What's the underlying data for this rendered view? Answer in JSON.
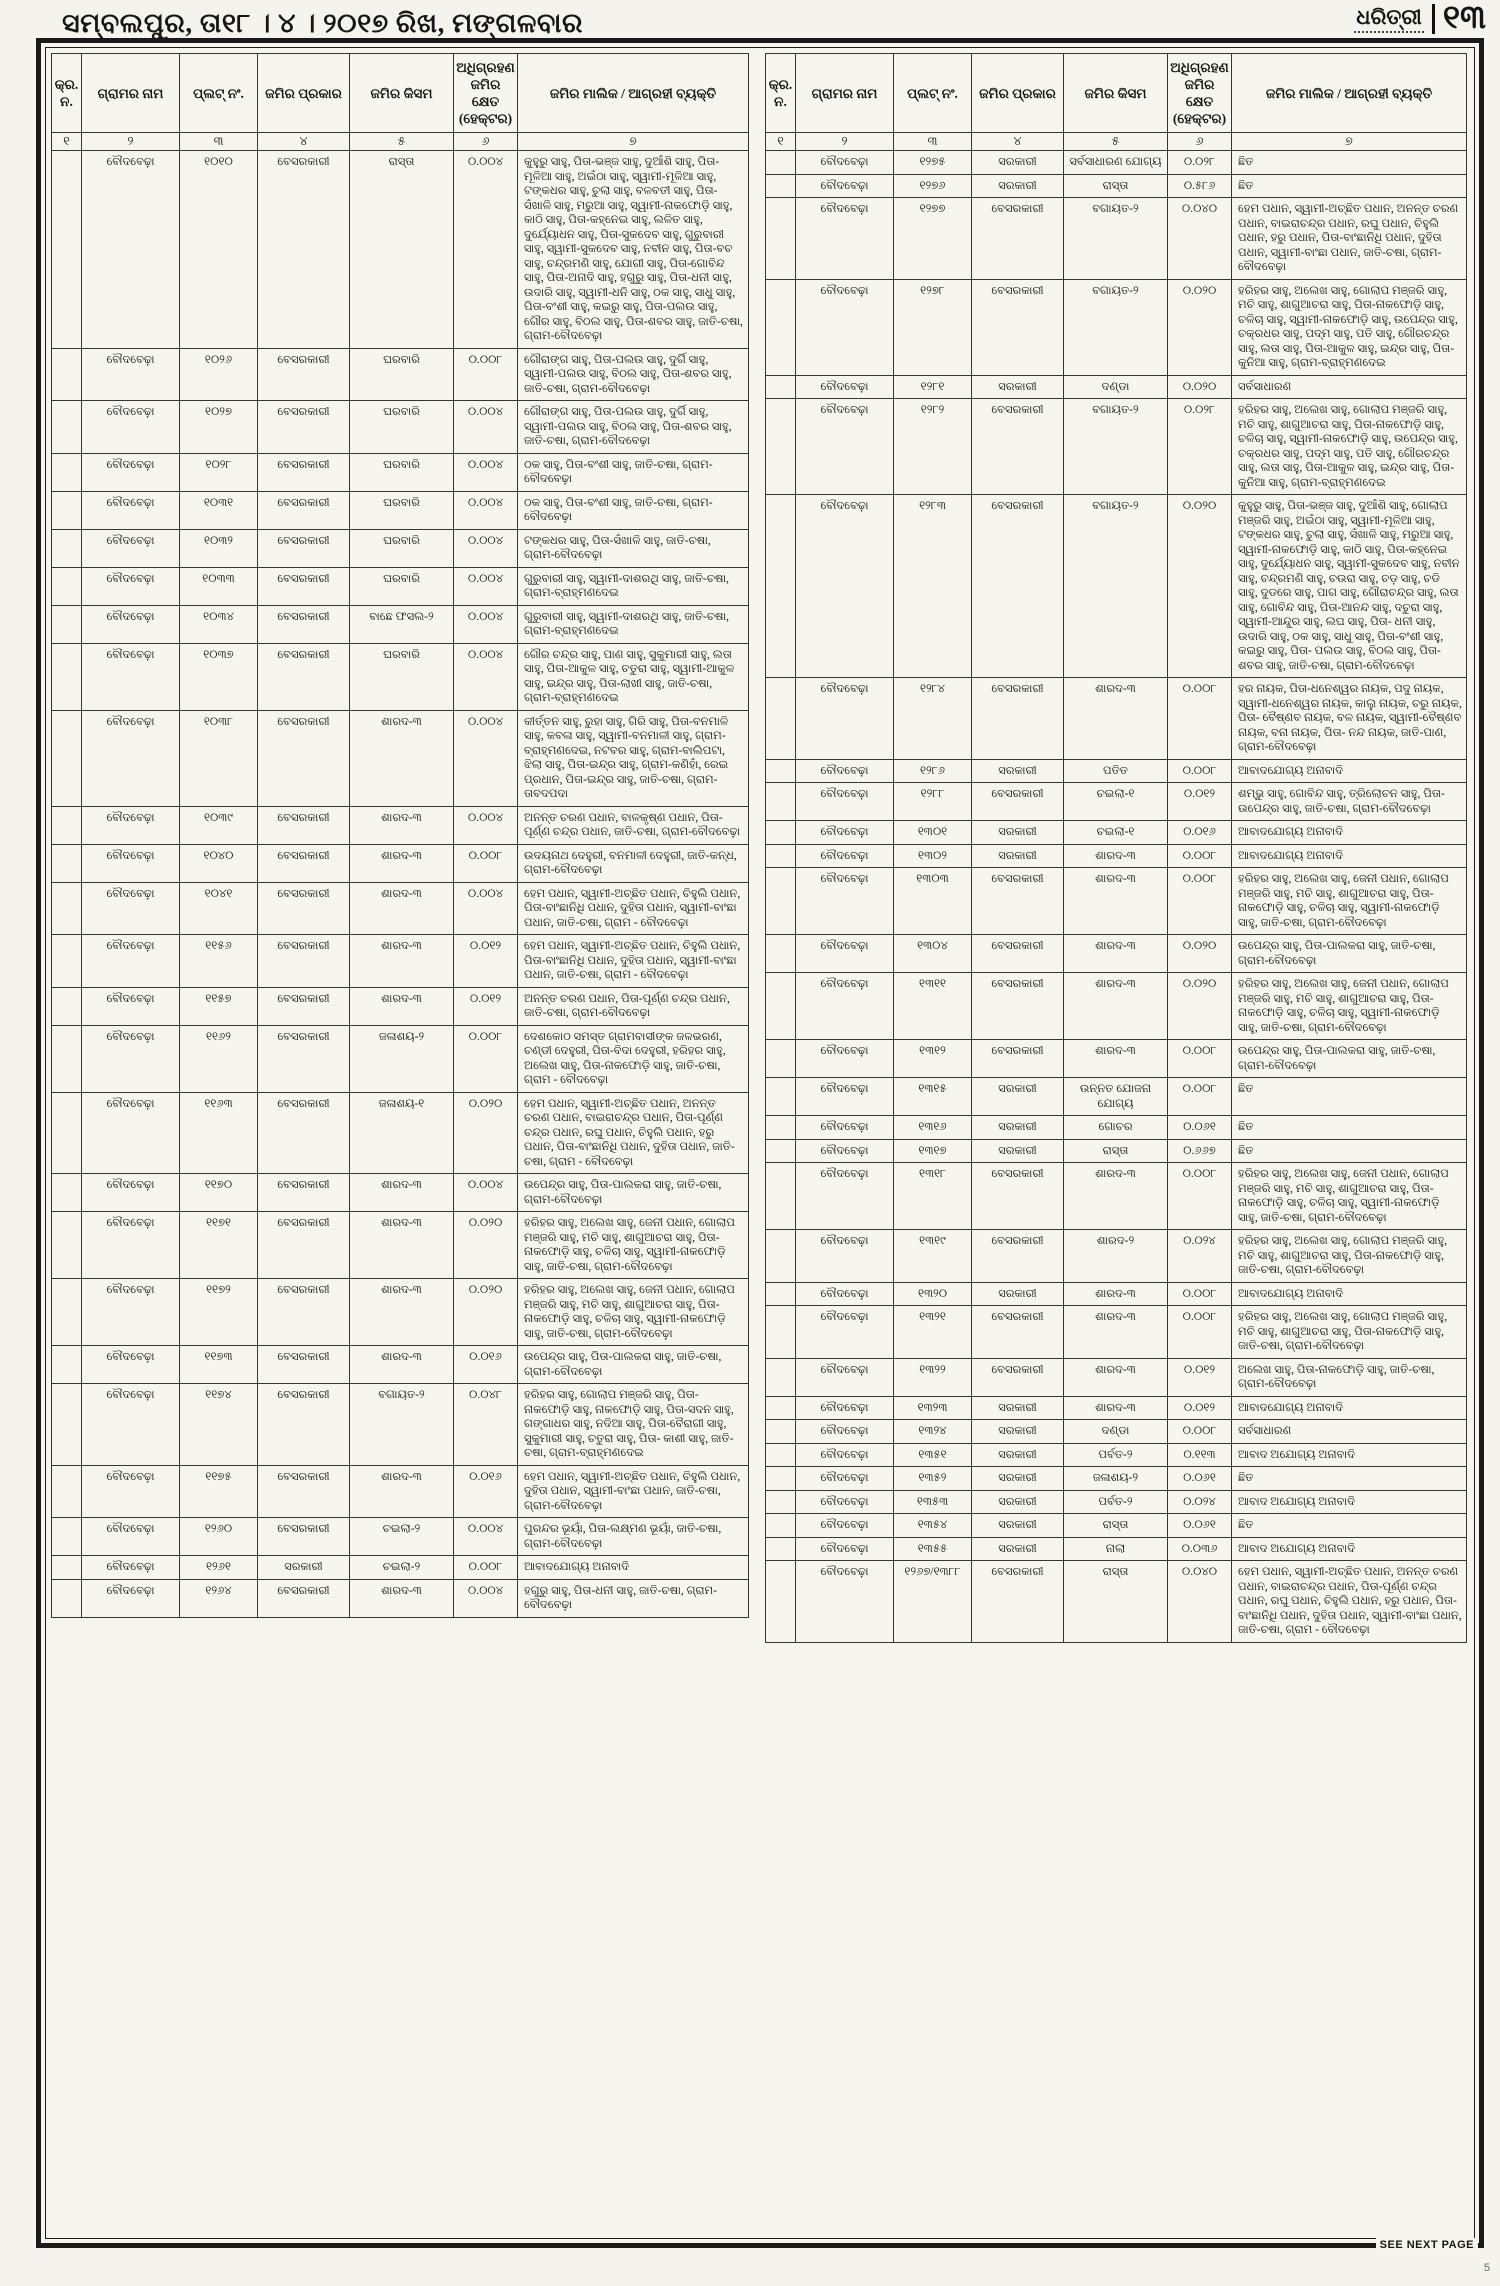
{
  "masthead": {
    "dateline": "ସମ୍ବଲପୁର, ତା୧୮ । ୪ । ୨୦୧୭ ରିଖ, ମଙ୍ଗଳବାର",
    "logo": "ଧରିତ୍ରୀ",
    "page_number": "୧୩"
  },
  "table": {
    "headers": [
      "କ୍ର. ନ.",
      "ଗ୍ରାମର ନାମ",
      "ପ୍ଲଟ୍ ନଂ.",
      "ଜମିର ପ୍ରକାର",
      "ଜମିର କିସମ",
      "ଅଧିଗ୍ରହଣ ଜମିର କ୍ଷେତ (ହେକ୍ଟର)",
      "ଜମିର ମାଲିକ / ଆଗ୍ରହୀ ବ୍ୟକ୍ତି"
    ],
    "column_numbers": [
      "୧",
      "୨",
      "୩",
      "୪",
      "୫",
      "୬",
      "୭"
    ]
  },
  "left_rows": [
    {
      "village": "ବୌଦବେଢ଼ା",
      "plot": "୧୦୧୦",
      "type": "ବେସରକାରୀ",
      "kind": "ରାସ୍ତା",
      "area": "୦.୦୦୪",
      "owners": "କୁହୁରୁ ସାହୁ, ପିତା-ଭଞ୍ଜ ସାହୁ, ଦୁଆଁଶି ସାହୁ, ପିତା-ମୂଳିଆ ସାହୁ, ଅଇଁଠା ସାହୁ, ସ୍ୱାମୀ-ମୂଳିଆ ସାହୁ, ଟଙ୍କଧର ସାହୁ, ଚୁଲା ସାହୁ, ବଳବତୀ ସାହୁ, ପିତା-ସଁଖାଳି ସାହୁ, ମରୁଆ ସାହୁ, ସ୍ୱାମୀ-ନାକଫୋଡ଼ି ସାହୁ, କାଠି ସାହୁ, ପିତା-କହ୍ନେଇ ସାହୁ, ଲଳିତ ସାହୁ, ଦୁର୍ଯ୍ୟୋଧନ ସାହୁ, ପିତା-ସୁକଦେବ ସାହୁ, ଗୁରୁବାରୀ ସାହୁ, ସ୍ୱାମୀ-ସୁକଦେବ ସାହୁ, ନବୀନ ସାହୁ, ପିତା-ବଚ ସାହୁ, ଚନ୍ଦ୍ରମଣି ସାହୁ, ଯୋଗୀ ସାହୁ, ପିତା-ଗୋବିନ୍ଦ ସାହୁ, ପିତା-ଅନାଦି ସାହୁ, ହଗୁରୁ ସାହୁ, ପିତା-ଧନୀ ସାହୁ, ଉଦାରି ସାହୁ, ସ୍ୱାମୀ-ଧନି ସାହୁ, ଠକ ସାହୁ, ସାଧୁ ସାହୁ, ପିତା-ବଂଶୀ ସାହୁ, କଇରୁ ସାହୁ, ପିତା-ପଲଉ ସାହୁ, ଗୌର ସାହୁ, ବିଠଲ ସାହୁ, ପିତା-ଶବର ସାହୁ, ଜାତି-ଚଷା, ଗ୍ରାମ-ବୌଦବେଢ଼ା"
    },
    {
      "village": "ବୌଦବେଢ଼ା",
      "plot": "୧୦୨୬",
      "type": "ବେସରକାରୀ",
      "kind": "ଘରବାରି",
      "area": "୦.୦୦୮",
      "owners": "ଗୌରାଙ୍ଗ ସାହୁ, ପିତା-ପଲଉ ସାହୁ, ଦୁର୍ଗି ସାହୁ, ସ୍ୱାମୀ-ପଲଉ ସାହୁ, ବିଠଲ ସାହୁ, ପିତା-ଶବର ସାହୁ, ଜାତି-ଚଷା, ଗ୍ରାମ-ବୌଦବେଢ଼ା"
    },
    {
      "village": "ବୌଦବେଢ଼ା",
      "plot": "୧୦୨୭",
      "type": "ବେସରକାରୀ",
      "kind": "ଘରବାରି",
      "area": "୦.୦୦୪",
      "owners": "ଗୌରାଙ୍ଗ ସାହୁ, ପିତା-ପଲଉ ସାହୁ, ଦୁର୍ଗି ସାହୁ, ସ୍ୱାମୀ-ପଲଉ ସାହୁ, ବିଠଲ ସାହୁ, ପିତା-ଶବର ସାହୁ, ଜାତି-ଚଷା, ଗ୍ରାମ-ବୌଦବେଢ଼ା"
    },
    {
      "village": "ବୌଦବେଢ଼ା",
      "plot": "୧୦୨୮",
      "type": "ବେସରକାରୀ",
      "kind": "ଘରବାରି",
      "area": "୦.୦୦୪",
      "owners": "ଠକ ସାହୁ, ପିତା-ବଂଶୀ ସାହୁ, ଜାତି-ଚଷା, ଗ୍ରାମ-ବୌଦବେଢ଼ା"
    },
    {
      "village": "ବୌଦବେଢ଼ା",
      "plot": "୧୦୩୧",
      "type": "ବେସରକାରୀ",
      "kind": "ଘରବାରି",
      "area": "୦.୦୦୪",
      "owners": "ଠକ ସାହୁ, ପିତା-ବଂଶୀ ସାହୁ, ଜାତି-ଚଷା, ଗ୍ରାମ-ବୌଦବେଢ଼ା"
    },
    {
      "village": "ବୌଦବେଢ଼ା",
      "plot": "୧୦୩୨",
      "type": "ବେସରକାରୀ",
      "kind": "ଘରବାରି",
      "area": "୦.୦୦୪",
      "owners": "ଟଙ୍କଧର ସାହୁ, ପିତା-ସଁଖାଳି ସାହୁ, ଜାତି-ଚଷା, ଗ୍ରାମ-ବୌଦବେଢ଼ା"
    },
    {
      "village": "ବୌଦବେଢ଼ା",
      "plot": "୧୦୩୩",
      "type": "ବେସରକାରୀ",
      "kind": "ଘରବାରି",
      "area": "୦.୦୦୪",
      "owners": "ଗୁରୁବାରୀ ସାହୁ, ସ୍ୱାମୀ-ଦାଶରଥି ସାହୁ, ଜାତି-ଚଷା, ଗ୍ରାମ-ବ୍ରାହ୍ମଣଦେଇ"
    },
    {
      "village": "ବୌଦବେଢ଼ା",
      "plot": "୧୦୩୪",
      "type": "ବେସରକାରୀ",
      "kind": "ବାଛେ ଫସଲ-୨",
      "area": "୦.୦୦୪",
      "owners": "ଗୁରୁବାରୀ ସାହୁ, ସ୍ୱାମୀ-ଦାଶରଥି ସାହୁ, ଜାତି-ଚଷା, ଗ୍ରାମ-ବ୍ରାହ୍ମଣଦେଇ"
    },
    {
      "village": "ବୌଦବେଢ଼ା",
      "plot": "୧୦୩୭",
      "type": "ବେସରକାରୀ",
      "kind": "ଘରବାରି",
      "area": "୦.୦୦୪",
      "owners": "ଗୌର ଚନ୍ଦ୍ର ସାହୁ, ପାଣ ସାହୁ, ସୁକୁମାରୀ ସାହୁ, ଲତା ସାହୁ, ପିତା-ଆକୁଳ ସାହୁ, ଚତୁରା ସାହୁ, ସ୍ୱାମୀ-ଆକୁଳ ସାହୁ, ଇନ୍ଦ୍ର ସାହୁ, ପିତା-ଲାଖୀ ସାହୁ, ଜାତି-ଚଷା, ଗ୍ରାମ-ବ୍ରାହ୍ମଣଦେଇ"
    },
    {
      "village": "ବୌଦବେଢ଼ା",
      "plot": "୧୦୩୮",
      "type": "ବେସରକାରୀ",
      "kind": "ଶାରଦ-୩",
      "area": "୦.୦୦୪",
      "owners": "କୀର୍ତ୍ତନ ସାହୁ, ରୁହା ସାହୁ, ଗିରି ସାହୁ, ପିତା-ବନମାଳି ସାହୁ, କବଳା ସାହୁ, ସ୍ୱାମୀ-ବନମାଳୀ ସାହୁ, ଗ୍ରାମ-ବ୍ରାହ୍ମଣଦେଇ, ନଟବର ସାହୁ, ଗ୍ରାମ-ବାଲିପଟା, ଝିଲା ସାହୁ, ପିତା-ଇନ୍ଦ୍ର ସାହୁ, ଗ୍ରାମ-କଣିହାଁ, ରେଇ ପ୍ରଧାନ, ପିତା-ଇନ୍ଦ୍ର ସାହୁ, ଜାତି-ଚଷା, ଗ୍ରାମ-ତାବଦପଦା"
    },
    {
      "village": "ବୌଦବେଢ଼ା",
      "plot": "୧୦୩୯",
      "type": "ବେସରକାରୀ",
      "kind": "ଶାରଦ-୩",
      "area": "୦.୦୦୪",
      "owners": "ଅନନ୍ତ ଚରଣ ପଧାନ, ବାଳକୃଷ୍ଣ ପଧାନ, ପିତା-ପୂର୍ଣ୍ଣ ଚନ୍ଦ୍ର ପଧାନ, ଜାତି-ଚଷା, ଗ୍ରାମ-ବୌଦବେଢ଼ା"
    },
    {
      "village": "ବୌଦବେଢ଼ା",
      "plot": "୧୦୪୦",
      "type": "ବେସରକାରୀ",
      "kind": "ଶାରଦ-୩",
      "area": "୦.୦୦୮",
      "owners": "ଉଦୟନାଥ ଦେହୁରୀ, ବନମାଳୀ ଦେହୁରୀ, ଜାତି-କନ୍ଧ, ଗ୍ରାମ-ବୌଦବେଢ଼ା"
    },
    {
      "village": "ବୌଦବେଢ଼ା",
      "plot": "୧୦୪୧",
      "type": "ବେସରକାରୀ",
      "kind": "ଶାରଦ-୩",
      "area": "୦.୦୦୪",
      "owners": "ହେମ ପଧାନ, ସ୍ୱାମୀ-ଅଚ୍ଛିତ ପଧାନ, ଚିହୁଲି ପଧାନ, ପିତା-ବାଂଛାନିଧି ପଧାନ, ଦୁହିତା ପଧାନ, ସ୍ୱାମୀ-ବାଂଛା ପଧାନ, ଜାତି-ଚଷା, ଗ୍ରାମ - ବୌଦବେଢ଼ା"
    },
    {
      "village": "ବୌଦବେଢ଼ା",
      "plot": "୧୧୫୬",
      "type": "ବେସରକାରୀ",
      "kind": "ଶାରଦ-୩",
      "area": "୦.୦୧୨",
      "owners": "ହେମ ପଧାନ, ସ୍ୱାମୀ-ଅଚ୍ଛିତ ପଧାନ, ଚିହୁଲି ପଧାନ, ପିତା-ବାଂଛାନିଧି ପଧାନ, ଦୁହିତା ପଧାନ, ସ୍ୱାମୀ-ବାଂଛା ପଧାନ, ଜାତି-ଚଷା, ଗ୍ରାମ - ବୌଦବେଢ଼ା"
    },
    {
      "village": "ବୌଦବେଢ଼ା",
      "plot": "୧୧୫୭",
      "type": "ବେସରକାରୀ",
      "kind": "ଶାରଦ-୩",
      "area": "୦.୦୧୨",
      "owners": "ଅନନ୍ତ ଚରଣ ପଧାନ, ପିତା-ପୂର୍ଣ୍ଣ ଚନ୍ଦ୍ର ପଧାନ, ଜାତି-ଚଷା, ଗ୍ରାମ-ବୌଦବେଢ଼ା"
    },
    {
      "village": "ବୌଦବେଢ଼ା",
      "plot": "୧୧୬୨",
      "type": "ବେସରକାରୀ",
      "kind": "ଜଳାଶୟ-୨",
      "area": "୦.୦୦୮",
      "owners": "ଦେଶକୋଠ ସମସ୍ତ ଗ୍ରାମବାସୀଙ୍କ ଜଳଭରଣ, ଚଣ୍ଡୀ ଦେହୁରୀ, ପିତା-ବିଦା ଦେହୁରୀ, ହରିହର ସାହୁ, ଅଲେଖ ସାହୁ, ପିତା-ନାକଫୋଡ଼ି ସାହୁ, ଜାତି-ଚଷା, ଗ୍ରାମ - ବୌଦବେଢ଼ା"
    },
    {
      "village": "ବୌଦବେଢ଼ା",
      "plot": "୧୧୬୩",
      "type": "ବେସରକାରୀ",
      "kind": "ଜଳାଶୟ-୧",
      "area": "୦.୦୨୦",
      "owners": "ହେମ ପଧାନ, ସ୍ୱାମୀ-ଅଚ୍ଛିତ ପଧାନ, ଅନନ୍ତ ଚରଣ ପଧାନ, ବାଇରାଚନ୍ଦ୍ର ପଧାନ, ପିତା-ପୂର୍ଣ୍ଣ ଚନ୍ଦ୍ର ପଧାନ, ରଘୁ ପଧାନ, ଚିହୁଲି ପଧାନ, ହରୁ ପଧାନ, ପିତା-ବାଂଛାନିଧି ପଧାନ, ଦୁହିତା ପଧାନ, ଜାତି-ଚଷା, ଗ୍ରାମ - ବୌଦବେଢ଼ା"
    },
    {
      "village": "ବୌଦବେଢ଼ା",
      "plot": "୧୧୭୦",
      "type": "ବେସରକାରୀ",
      "kind": "ଶାରଦ-୩",
      "area": "୦.୦୦୪",
      "owners": "ଉପେନ୍ଦ୍ର ସାହୁ, ପିତା-ପାଲକରା ସାହୁ, ଜାତି-ଚଷା, ଗ୍ରାମ-ବୌଦବେଢ଼ା"
    },
    {
      "village": "ବୌଦବେଢ଼ା",
      "plot": "୧୧୭୧",
      "type": "ବେସରକାରୀ",
      "kind": "ଶାରଦ-୩",
      "area": "୦.୦୨୦",
      "owners": "ହରିହର ସାହୁ, ଅଲେଖ ସାହୁ, ଜେନୀ ପଧାନ, ଗୋଲାପ ମଞ୍ଜରି ସାହୁ, ମଚି ସାହୁ, ଶାଗୁଆଚରା ସାହୁ, ପିତା-ନାକଫୋଡ଼ି ସାହୁ, ଚଳିଚା ସାହୁ, ସ୍ୱାମୀ-ନାକଫୋଡ଼ି ସାହୁ, ଜାତି-ଚଷା, ଗ୍ରାମ-ବୌଦବେଢ଼ା"
    },
    {
      "village": "ବୌଦବେଢ଼ା",
      "plot": "୧୧୭୨",
      "type": "ବେସରକାରୀ",
      "kind": "ଶାରଦ-୩",
      "area": "୦.୦୨୦",
      "owners": "ହରିହର ସାହୁ, ଅଲେଖ ସାହୁ, ଜେନୀ ପଧାନ, ଗୋଲାପ ମଞ୍ଜରି ସାହୁ, ମଚି ସାହୁ, ଶାଗୁଆଚରା ସାହୁ, ପିତା-ନାକଫୋଡ଼ି ସାହୁ, ଚଳିଚା ସାହୁ, ସ୍ୱାମୀ-ନାକଫୋଡ଼ି ସାହୁ, ଜାତି-ଚଷା, ଗ୍ରାମ-ବୌଦବେଢ଼ା"
    },
    {
      "village": "ବୌଦବେଢ଼ା",
      "plot": "୧୧୭୩",
      "type": "ବେସରକାରୀ",
      "kind": "ଶାରଦ-୩",
      "area": "୦.୦୧୬",
      "owners": "ଉପେନ୍ଦ୍ର ସାହୁ, ପିତା-ପାଲକରା ସାହୁ, ଜାତି-ଚଷା, ଗ୍ରାମ-ବୌଦବେଢ଼ା"
    },
    {
      "village": "ବୌଦବେଢ଼ା",
      "plot": "୧୧୭୪",
      "type": "ବେସରକାରୀ",
      "kind": "ବଗାୟତ-୨",
      "area": "୦.୦୪୮",
      "owners": "ହରିହର ସାହୁ, ଗୋଲାପ ମଞ୍ଜରି ସାହୁ, ପିତା-ନାକଫୋଡ଼ି ସାହୁ, ନାକଫୋଡ଼ି ସାହୁ, ପିତା-ସଦନ ସାହୁ, ଗଙ୍ଗାଧର ସାହୁ, ନଦିଆ ସାହୁ, ପିତା-ବୈରାଗୀ ସାହୁ, ସୁକୁମାରୀ ସାହୁ, ଚତୁରା ସାହୁ, ପିତା- କାଶୀ ସାହୁ, ଜାତି-ଚଷା, ଗ୍ରାମ-ବ୍ରାହ୍ମଣଦେଇ"
    },
    {
      "village": "ବୌଦବେଢ଼ା",
      "plot": "୧୧୭୫",
      "type": "ବେସରକାରୀ",
      "kind": "ଶାରଦ-୩",
      "area": "୦.୦୧୬",
      "owners": "ହେମ ପଧାନ, ସ୍ୱାମୀ-ଅଚ୍ଛିତ ପଧାନ, ଚିହୁଲି ପଧାନ, ଦୁହିତା ପଧାନ, ସ୍ୱାମୀ-ବାଂଛା ପଧାନ, ଜାତି-ଚଷା, ଗ୍ରାମ-ବୌଦବେଢ଼ା"
    },
    {
      "village": "ବୌଦବେଢ଼ା",
      "plot": "୧୨୬୦",
      "type": "ବେସରକାରୀ",
      "kind": "ଚଇଲା-୨",
      "area": "୦.୦୦୪",
      "owners": "ପୁରନ୍ଦର ଭୂୟାଁ, ପିତା-ଲକ୍ଷ୍ମଣ ଭୂୟାଁ, ଜାତି-ଚଷା, ଗ୍ରାମ-ବୌଦବେଢ଼ା"
    },
    {
      "village": "ବୌଦବେଢ଼ା",
      "plot": "୧୨୬୧",
      "type": "ସରକାରୀ",
      "kind": "ଚଇଲା-୨",
      "area": "୦.୦୦୮",
      "owners": "ଆବାଦଯୋଗ୍ୟ ଅନାବାଦି"
    },
    {
      "village": "ବୌଦବେଢ଼ା",
      "plot": "୧୨୬୪",
      "type": "ବେସରକାରୀ",
      "kind": "ଶାରଦ-୩",
      "area": "୦.୦୦୪",
      "owners": "ହଗୁରୁ ସାହୁ, ପିତା-ଧନୀ ସାହୁ, ଜାତି-ଚଷା, ଗ୍ରାମ-ବୌଦବେଢ଼ା"
    }
  ],
  "right_rows": [
    {
      "village": "ବୌଦବେଢ଼ା",
      "plot": "୧୨୭୫",
      "type": "ସରକାରୀ",
      "kind": "ସର୍ବସାଧାରଣ ଯୋଗ୍ୟ",
      "area": "୦.୦୨୮",
      "owners": "ଛିତ"
    },
    {
      "village": "ବୌଦବେଢ଼ା",
      "plot": "୧୨୭୬",
      "type": "ସରକାରୀ",
      "kind": "ରାସ୍ତା",
      "area": "୦.୫୮୬",
      "owners": "ଛିତ"
    },
    {
      "village": "ବୌଦବେଢ଼ା",
      "plot": "୧୨୭୭",
      "type": "ବେସରକାରୀ",
      "kind": "ବଗାୟତ-୨",
      "area": "୦.୦୪୦",
      "owners": "ହେମ ପଧାନ, ସ୍ୱାମୀ-ଅଚ୍ଛିତ ପଧାନ, ଅନନ୍ତ ଚରଣ ପଧାନ, ବାଇରାଚନ୍ଦ୍ର ପଧାନ, ରଘୁ ପଧାନ, ଚିହୁଲି ପଧାନ, ହରୁ ପଧାନ, ପିତା-ବାଂଛାନିଧି ପଧାନ, ଦୁହିତା ପଧାନ, ସ୍ୱାମୀ-ବାଂଛା ପଧାନ, ଜାତି-ଚଷା, ଗ୍ରାମ-ବୌଦବେଢ଼ା"
    },
    {
      "village": "ବୌଦବେଢ଼ା",
      "plot": "୧୨୭୮",
      "type": "ବେସରକାରୀ",
      "kind": "ବଗାୟତ-୨",
      "area": "୦.୦୨୦",
      "owners": "ହରିହର ସାହୁ, ଅଲେଖ ସାହୁ, ଗୋଲାପ ମଞ୍ଜରି ସାହୁ, ମଚି ସାହୁ, ଶାଗୁଆଚରା ସାହୁ, ପିତା-ନାକଫୋଡ଼ି ସାହୁ, ଚଳିଚା ସାହୁ, ସ୍ୱାମୀ-ନାକଫୋଡ଼ି ସାହୁ, ଉପେନ୍ଦ୍ର ସାହୁ, ଚକ୍ରଧର ସାହୁ, ପଦ୍ମ ସାହୁ, ପତି ସାହୁ, ଗୌରଚନ୍ଦ୍ର ସାହୁ, ଲତା ସାହୁ, ପିତା-ଆକୁଳ ସାହୁ, ଇନ୍ଦ୍ର ସାହୁ, ପିତା-କୁନିଆ ସାହୁ, ଗ୍ରାମ-ବ୍ରାହ୍ମଣଦେଇ"
    },
    {
      "village": "ବୌଦବେଢ଼ା",
      "plot": "୧୨୮୧",
      "type": "ସରକାରୀ",
      "kind": "ଦଣ୍ଡା",
      "area": "୦.୦୨୦",
      "owners": "ସର୍ବସାଧାରଣ"
    },
    {
      "village": "ବୌଦବେଢ଼ା",
      "plot": "୧୨୮୨",
      "type": "ବେସରକାରୀ",
      "kind": "ବଗାୟତ-୨",
      "area": "୦.୦୨୮",
      "owners": "ହରିହର ସାହୁ, ଅଲେଖ ସାହୁ, ଗୋଲାପ ମଞ୍ଜରି ସାହୁ, ମଚି ସାହୁ, ଶାଗୁଆଚରା ସାହୁ, ପିତା-ନାକଫୋଡ଼ି ସାହୁ, ଚଳିଚା ସାହୁ, ସ୍ୱାମୀ-ନାକଫୋଡ଼ି ସାହୁ, ଉପେନ୍ଦ୍ର ସାହୁ, ଚକ୍ରଧର ସାହୁ, ପଦ୍ମ ସାହୁ, ପତି ସାହୁ, ଗୌରଚନ୍ଦ୍ର ସାହୁ, ଲତା ସାହୁ, ପିତା-ଆକୁଳ ସାହୁ, ଇନ୍ଦ୍ର ସାହୁ, ପିତା-କୁନିଆ ସାହୁ, ଗ୍ରାମ-ବ୍ରାହ୍ମଣଦେଇ"
    },
    {
      "village": "ବୌଦବେଢ଼ା",
      "plot": "୧୨୮୩",
      "type": "ବେସରକାରୀ",
      "kind": "ବଗାୟତ-୨",
      "area": "୦.୦୨୦",
      "owners": "କୁହୁରୁ ସାହୁ, ପିତା-ଭଞ୍ଜ ସାହୁ, ଦୁଆଁଶି ସାହୁ, ଗୋଲାପ ମଞ୍ଜରି ସାହୁ, ଅଇଁଠା ସାହୁ, ସ୍ୱାମୀ-ମୂଳିଆ ସାହୁ, ଟଙ୍କଧର ସାହୁ, ଚୁଲା ସାହୁ, ସଁଖାଳି ସାହୁ, ମରୁଆ ସାହୁ, ସ୍ୱାମୀ-ନାକଫୋଡ଼ି ସାହୁ, କାଠି ସାହୁ, ପିତା-କହ୍ନେଇ ସାହୁ, ଦୁର୍ଯ୍ୟୋଧନ ସାହୁ, ସ୍ୱାମୀ-ସୁକଦେବ ସାହୁ, ନବୀନ ସାହୁ, ଚନ୍ଦ୍ରମଣି ସାହୁ, ଚଉରା ସାହୁ, ଚଡ଼ ସାହୁ, ଚଡି ସାହୁ, ଦୁଡରେ ସାହୁ, ପାଗ ସାହୁ, ଗୌରାଚନ୍ଦ୍ର ସାହୁ, ଲତା ସାହୁ, ଗୋବିନ୍ଦ ସାହୁ, ପିତା-ଆନନ୍ଦ ସାହୁ, ଦଚୁରା ସାହୁ, ସ୍ୱାମୀ-ଆନ୍ଦୁର ସାହୁ, ଲଘ ସାହୁ, ପିତା- ଧନୀ ସାହୁ, ଉଦାରି ସାହୁ, ଠକ ସାହୁ, ସାଧୁ ସାହୁ, ପିତା-ବଂଶୀ ସାହୁ, କଇରୁ ସାହୁ, ପିତା- ପଲଉ ସାହୁ, ବିଠଲ ସାହୁ, ପିତା-ଶବର ସାହୁ, ଜାତି-ଚଷା, ଗ୍ରାମ-ବୌଦବେଢ଼ା"
    },
    {
      "village": "ବୌଦବେଢ଼ା",
      "plot": "୧୨୮୪",
      "type": "ବେସରକାରୀ",
      "kind": "ଶାରଦ-୩",
      "area": "୦.୦୦୮",
      "owners": "ହର ନାୟକ, ପିତା-ଧନେଶ୍ୱର ନାୟକ, ପଦୁ ନାୟକ, ସ୍ୱାମୀ-ଧନେଶ୍ୱର ନାୟକ, କାଲୁ ନାୟକ, ଚରୁ ନାୟକ, ପିତା- ବୈଷ୍ଣବ ନାୟକ, ବଳ ନାୟକ, ସ୍ୱାମୀ-ବୈଷ୍ଣବ ନାୟକ, ବନା ନାୟକ, ପିତା- ନନ୍ଦ ନାୟକ, ଜାତି-ପାଣ, ଗ୍ରାମ-ବୌଦବେଢ଼ା"
    },
    {
      "village": "ବୌଦବେଢ଼ା",
      "plot": "୧୨୮୬",
      "type": "ସରକାରୀ",
      "kind": "ପତିତ",
      "area": "୦.୦୦୮",
      "owners": "ଆବାଦଯୋଗ୍ୟ ଅନାବାଦି"
    },
    {
      "village": "ବୌଦବେଢ଼ା",
      "plot": "୧୨୮୮",
      "type": "ବେସରକାରୀ",
      "kind": "ଚଇଲା-୧",
      "area": "୦.୦୧୨",
      "owners": "ଶମ୍ଭୁ ସାହୁ, ଗୋବିନ୍ଦ ସାହୁ, ତ୍ରିଲୋଚନ ସାହୁ, ପିତା-ଉପେନ୍ଦ୍ର ସାହୁ, ଜାତି-ଚଷା, ଗ୍ରାମ-ବୌଦବେଢ଼ା"
    },
    {
      "village": "ବୌଦବେଢ଼ା",
      "plot": "୧୩୦୧",
      "type": "ସରକାରୀ",
      "kind": "ଚଇଲା-୧",
      "area": "୦.୦୧୬",
      "owners": "ଆବାଦଯୋଗ୍ୟ ଅନାବାଦି"
    },
    {
      "village": "ବୌଦବେଢ଼ା",
      "plot": "୧୩୦୨",
      "type": "ସରକାରୀ",
      "kind": "ଶାରଦ-୩",
      "area": "୦.୦୦୮",
      "owners": "ଆବାଦଯୋଗ୍ୟ ଅନାବାଦି"
    },
    {
      "village": "ବୌଦବେଢ଼ା",
      "plot": "୧୩୦୩",
      "type": "ବେସରକାରୀ",
      "kind": "ଶାରଦ-୩",
      "area": "୦.୦୦୮",
      "owners": "ହରିହର ସାହୁ, ଅଲେଖ ସାହୁ, ଜେନୀ ପଧାନ, ଗୋଲାପ ମଞ୍ଜରି ସାହୁ, ମଚି ସାହୁ, ଶାଗୁଆଚରା ସାହୁ, ପିତା-ନାକଫୋଡ଼ି ସାହୁ, ଚଳିଚା ସାହୁ, ସ୍ୱାମୀ-ନାକଫୋଡ଼ି ସାହୁ, ଜାତି-ଚଷା, ଗ୍ରାମ-ବୌଦବେଢ଼ା"
    },
    {
      "village": "ବୌଦବେଢ଼ା",
      "plot": "୧୩୦୪",
      "type": "ବେସରକାରୀ",
      "kind": "ଶାରଦ-୩",
      "area": "୦.୦୨୦",
      "owners": "ଉପେନ୍ଦ୍ର ସାହୁ, ପିତା-ପାଲକରା ସାହୁ, ଜାତି-ଚଷା, ଗ୍ରାମ-ବୌଦବେଢ଼ା"
    },
    {
      "village": "ବୌଦବେଢ଼ା",
      "plot": "୧୩୧୧",
      "type": "ବେସରକାରୀ",
      "kind": "ଶାରଦ-୩",
      "area": "୦.୦୨୦",
      "owners": "ହରିହର ସାହୁ, ଅଲେଖ ସାହୁ, ଜେନୀ ପଧାନ, ଗୋଲାପ ମଞ୍ଜରି ସାହୁ, ମଚି ସାହୁ, ଶାଗୁଆଚରା ସାହୁ, ପିତା-ନାକଫୋଡ଼ି ସାହୁ, ଚଳିଚା ସାହୁ, ସ୍ୱାମୀ-ନାକଫୋଡ଼ି ସାହୁ, ଜାତି-ଚଷା, ଗ୍ରାମ-ବୌଦବେଢ଼ା"
    },
    {
      "village": "ବୌଦବେଢ଼ା",
      "plot": "୧୩୧୨",
      "type": "ବେସରକାରୀ",
      "kind": "ଶାରଦ-୩",
      "area": "୦.୦୦୮",
      "owners": "ଉପେନ୍ଦ୍ର ସାହୁ, ପିତା-ପାଲକରା ସାହୁ, ଜାତି-ଚଷା, ଗ୍ରାମ-ବୌଦବେଢ଼ା"
    },
    {
      "village": "ବୌଦବେଢ଼ା",
      "plot": "୧୩୧୫",
      "type": "ସରକାରୀ",
      "kind": "ଉନ୍ନତ ଯୋଜନା ଯୋଗ୍ୟ",
      "area": "୦.୦୦୮",
      "owners": "ଛିତ"
    },
    {
      "village": "ବୌଦବେଢ଼ା",
      "plot": "୧୩୧୬",
      "type": "ସରକାରୀ",
      "kind": "ଗୋଚର",
      "area": "୦.୦୬୧",
      "owners": "ଛିତ"
    },
    {
      "village": "ବୌଦବେଢ଼ା",
      "plot": "୧୩୧୭",
      "type": "ସରକାରୀ",
      "kind": "ରାସ୍ତା",
      "area": "୦.୬୬୭",
      "owners": "ଛିତ"
    },
    {
      "village": "ବୌଦବେଢ଼ା",
      "plot": "୧୩୧୮",
      "type": "ବେସରକାରୀ",
      "kind": "ଶାରଦ-୩",
      "area": "୦.୦୦୮",
      "owners": "ହରିହର ସାହୁ, ଅଲେଖ ସାହୁ, ଜେନୀ ପଧାନ, ଗୋଲାପ ମଞ୍ଜରି ସାହୁ, ମଚି ସାହୁ, ଶାଗୁଆଚରା ସାହୁ, ପିତା-ନାକଫୋଡ଼ି ସାହୁ, ଚଳିଚା ସାହୁ, ସ୍ୱାମୀ-ନାକଫୋଡ଼ି ସାହୁ, ଜାତି-ଚଷା, ଗ୍ରାମ-ବୌଦବେଢ଼ା"
    },
    {
      "village": "ବୌଦବେଢ଼ା",
      "plot": "୧୩୧୯",
      "type": "ବେସରକାରୀ",
      "kind": "ଶାରଦ-୨",
      "area": "୦.୦୨୪",
      "owners": "ହରିହର ସାହୁ, ଅଲେଖ ସାହୁ, ଗୋଲାପ ମଞ୍ଜରି ସାହୁ, ମଚି ସାହୁ, ଶାଗୁଆଚରା ସାହୁ, ପିତା-ନାକଫୋଡ଼ି ସାହୁ, ଜାତି-ଚଷା, ଗ୍ରାମ-ବୌଦବେଢ଼ା"
    },
    {
      "village": "ବୌଦବେଢ଼ା",
      "plot": "୧୩୨୦",
      "type": "ସରକାରୀ",
      "kind": "ଶାରଦ-୩",
      "area": "୦.୦୦୮",
      "owners": "ଆବାଦଯୋଗ୍ୟ ଅନାବାଦି"
    },
    {
      "village": "ବୌଦବେଢ଼ା",
      "plot": "୧୩୨୧",
      "type": "ବେସରକାରୀ",
      "kind": "ଶାରଦ-୩",
      "area": "୦.୦୦୮",
      "owners": "ହରିହର ସାହୁ, ଅଲେଖ ସାହୁ, ଗୋଲାପ ମଞ୍ଜରି ସାହୁ, ମଚି ସାହୁ, ଶାଗୁଆଚରା ସାହୁ, ପିତା-ନାକଫୋଡ଼ି ସାହୁ, ଜାତି-ଚଷା, ଗ୍ରାମ-ବୌଦବେଢ଼ା"
    },
    {
      "village": "ବୌଦବେଢ଼ା",
      "plot": "୧୩୨୨",
      "type": "ବେସରକାରୀ",
      "kind": "ଶାରଦ-୩",
      "area": "୦.୦୧୨",
      "owners": "ଅଲେଖ ସାହୁ, ପିତା-ନାକଫୋଡ଼ି ସାହୁ, ଜାତି-ଚଷା, ଗ୍ରାମ-ବୌଦବେଢ଼ା"
    },
    {
      "village": "ବୌଦବେଢ଼ା",
      "plot": "୧୩୨୩",
      "type": "ସରକାରୀ",
      "kind": "ଶାରଦ-୩",
      "area": "୦.୦୧୨",
      "owners": "ଆବାଦଯୋଗ୍ୟ ଅନାବାଦି"
    },
    {
      "village": "ବୌଦବେଢ଼ା",
      "plot": "୧୩୨୪",
      "type": "ସରକାରୀ",
      "kind": "ଦଣ୍ଡା",
      "area": "୦.୦୦୮",
      "owners": "ସର୍ବସାଧାରଣ"
    },
    {
      "village": "ବୌଦବେଢ଼ା",
      "plot": "୧୩୫୧",
      "type": "ସରକାରୀ",
      "kind": "ପର୍ବତ-୨",
      "area": "୦.୧୧୩",
      "owners": "ଆବାଦ ଅଯୋଗ୍ୟ ଅନାବାଦି"
    },
    {
      "village": "ବୌଦବେଢ଼ା",
      "plot": "୧୩୫୨",
      "type": "ସରକାରୀ",
      "kind": "ଜଳାଶୟ-୨",
      "area": "୦.୦୬୧",
      "owners": "ଛିତ"
    },
    {
      "village": "ବୌଦବେଢ଼ା",
      "plot": "୧୩୫୩",
      "type": "ସରକାରୀ",
      "kind": "ପର୍ବତ-୨",
      "area": "୦.୦୨୪",
      "owners": "ଆବାଦ ଅଯୋଗ୍ୟ ଅନାବାଦି"
    },
    {
      "village": "ବୌଦବେଢ଼ା",
      "plot": "୧୩୫୪",
      "type": "ସରକାରୀ",
      "kind": "ରାସ୍ତା",
      "area": "୦.୦୬୧",
      "owners": "ଛିତ"
    },
    {
      "village": "ବୌଦବେଢ଼ା",
      "plot": "୧୩୫୫",
      "type": "ସରକାରୀ",
      "kind": "ନାଲା",
      "area": "୦.୦୩୬",
      "owners": "ଆବାଦ ଅଯୋଗ୍ୟ ଅନାବାଦି"
    },
    {
      "village": "ବୌଦବେଢ଼ା",
      "plot": "୧୨୬୭/୧୩୮୮",
      "type": "ବେସରକାରୀ",
      "kind": "ରାସ୍ତା",
      "area": "୦.୦୪୦",
      "owners": "ହେମ ପଧାନ, ସ୍ୱାମୀ-ଅଚ୍ଛିତ ପଧାନ, ଅନନ୍ତ ଚରଣ ପଧାନ, ବାଇରାଚନ୍ଦ୍ର ପଧାନ, ପିତା-ପୂର୍ଣ୍ଣ ଚନ୍ଦ୍ର ପଧାନ, ରଘୁ ପଧାନ, ଚିହୁଲି ପଧାନ, ହରୁ ପଧାନ, ପିତା- ବାଂଛାନିଧି ପଧାନ, ଦୁହିତା ପଧାନ, ସ୍ୱାମୀ-ବାଂଛା ପଧାନ, ଜାତି-ଚଷା, ଗ୍ରାମ - ବୌଦବେଢ଼ା"
    }
  ],
  "footer": {
    "see_next_page": "SEE NEXT PAGE",
    "page_corner": "5"
  }
}
